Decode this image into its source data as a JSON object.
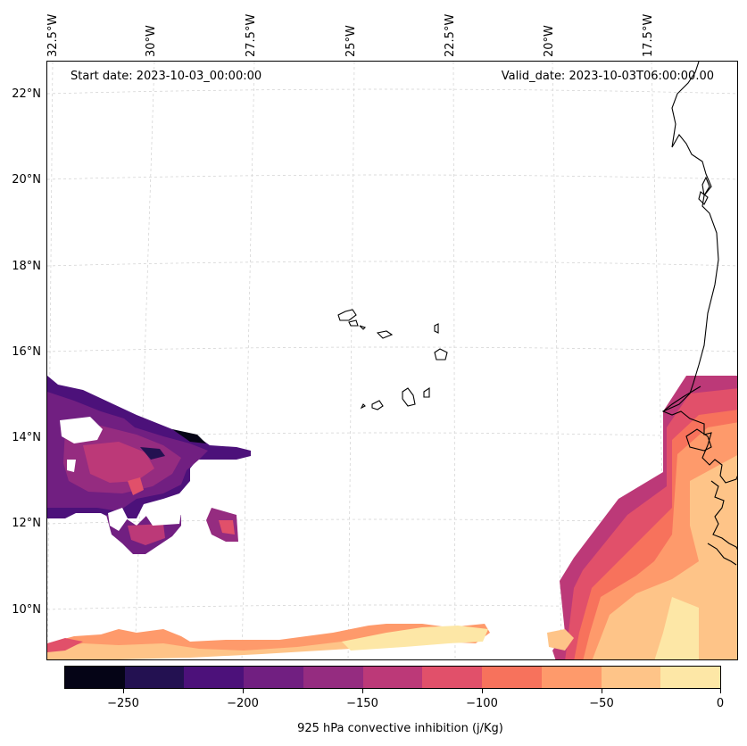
{
  "map": {
    "lon_labels": [
      "32.5°W",
      "30°W",
      "27.5°W",
      "25°W",
      "22.5°W",
      "20°W",
      "17.5°W"
    ],
    "lat_labels": [
      "22°N",
      "20°N",
      "18°N",
      "16°N",
      "14°N",
      "12°N",
      "10°N"
    ],
    "start_date": "Start date: 2023-10-03_00:00:00",
    "valid_date": "Valid_date: 2023-10-03T06:00:00.00",
    "gridlines": true
  },
  "colorbar": {
    "label": "925 hPa convective inhibition (j/Kg)",
    "ticks": [
      "−250",
      "−200",
      "−150",
      "−100",
      "−50",
      "0"
    ],
    "colors": [
      "#050416",
      "#231151",
      "#4c117a",
      "#711f81",
      "#952c80",
      "#bc3978",
      "#e1506a",
      "#f7725c",
      "#fe9a6b",
      "#fec488",
      "#fde7a6"
    ]
  }
}
